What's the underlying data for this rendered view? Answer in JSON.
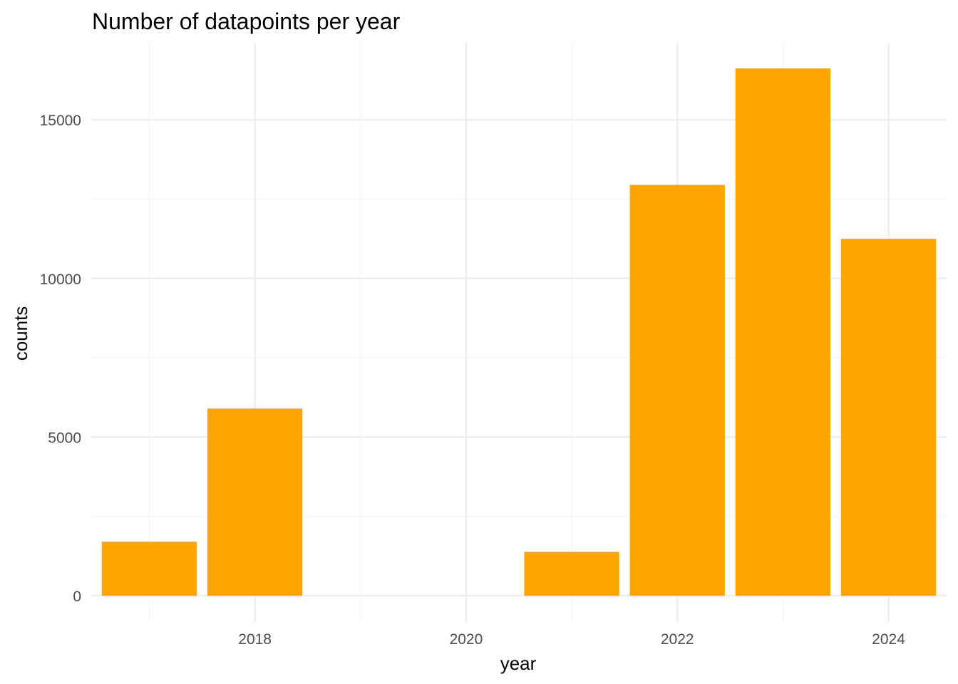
{
  "chart_data": {
    "type": "bar",
    "title": "Number of datapoints per year",
    "xlabel": "year",
    "ylabel": "counts",
    "x": [
      2017,
      2018,
      2021,
      2022,
      2023,
      2024
    ],
    "values": [
      1700,
      5900,
      1380,
      12950,
      16620,
      11250
    ],
    "bar_color": "#FFA500",
    "xlim": [
      2016.45,
      2024.55
    ],
    "ylim": [
      -830,
      17430
    ],
    "x_ticks": [
      2018,
      2020,
      2022,
      2024
    ],
    "x_tick_labels": [
      "2018",
      "2020",
      "2022",
      "2024"
    ],
    "y_ticks": [
      0,
      5000,
      10000,
      15000
    ],
    "y_tick_labels": [
      "0",
      "5000",
      "10000",
      "15000"
    ],
    "grid": true,
    "legend": "none"
  }
}
